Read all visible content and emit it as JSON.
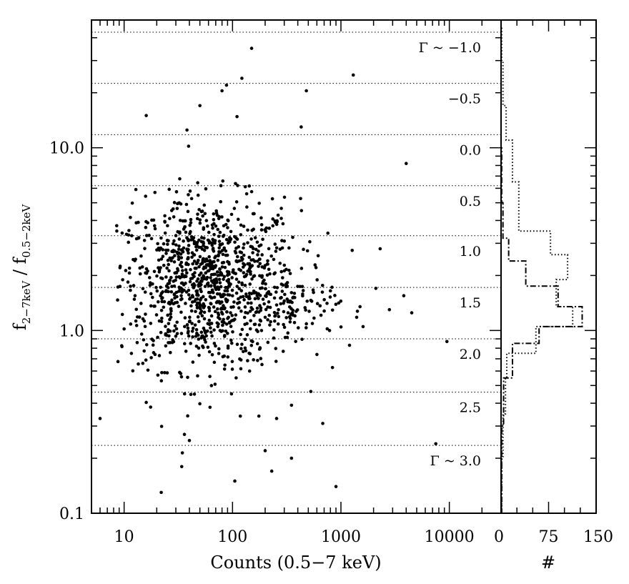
{
  "chart_data": [
    {
      "type": "scatter",
      "xlabel": "Counts (0.5−7 keV)",
      "ylabel": {
        "prefix": "f",
        "sub1": "2−7keV",
        "middle": " / f",
        "sub2": "0.5−2keV"
      },
      "x_scale": "log",
      "y_scale": "log",
      "xlim": [
        5,
        30000
      ],
      "ylim": [
        0.1,
        50
      ],
      "x_ticks": [
        {
          "value": 10,
          "label": "10"
        },
        {
          "value": 100,
          "label": "100"
        },
        {
          "value": 1000,
          "label": "1000"
        },
        {
          "value": 10000,
          "label": "10000"
        }
      ],
      "y_ticks": [
        {
          "value": 0.1,
          "label": "0.1"
        },
        {
          "value": 1.0,
          "label": "1.0"
        },
        {
          "value": 10.0,
          "label": "10.0"
        }
      ],
      "gamma_lines": [
        {
          "gamma": "-1.0",
          "ratio": 42.9,
          "label": "Γ ~ −1.0"
        },
        {
          "gamma": "-0.5",
          "ratio": 22.5,
          "label": "−0.5"
        },
        {
          "gamma": "0.0",
          "ratio": 11.8,
          "label": "0.0"
        },
        {
          "gamma": "0.5",
          "ratio": 6.2,
          "label": "0.5"
        },
        {
          "gamma": "1.0",
          "ratio": 3.3,
          "label": "1.0"
        },
        {
          "gamma": "1.5",
          "ratio": 1.72,
          "label": "1.5"
        },
        {
          "gamma": "2.0",
          "ratio": 0.9,
          "label": "2.0"
        },
        {
          "gamma": "2.5",
          "ratio": 0.46,
          "label": "2.5"
        },
        {
          "gamma": "3.0",
          "ratio": 0.235,
          "label": "Γ ~ 3.0"
        }
      ],
      "points": [
        [
          6,
          0.33
        ],
        [
          10,
          1.02
        ],
        [
          16,
          15
        ],
        [
          22,
          0.13
        ],
        [
          34,
          0.18
        ],
        [
          36,
          0.27
        ],
        [
          38,
          12.5
        ],
        [
          40,
          0.25
        ],
        [
          50,
          17
        ],
        [
          62,
          0.38
        ],
        [
          80,
          20.5
        ],
        [
          88,
          22
        ],
        [
          105,
          0.15
        ],
        [
          110,
          14.8
        ],
        [
          118,
          0.34
        ],
        [
          122,
          24
        ],
        [
          150,
          35
        ],
        [
          175,
          0.34
        ],
        [
          200,
          0.22
        ],
        [
          230,
          0.17
        ],
        [
          255,
          0.33
        ],
        [
          350,
          0.39
        ],
        [
          350,
          0.2
        ],
        [
          430,
          13
        ],
        [
          480,
          20.5
        ],
        [
          680,
          0.31
        ],
        [
          900,
          0.14
        ],
        [
          1300,
          25
        ],
        [
          2300,
          2.8
        ],
        [
          4000,
          8.2
        ],
        [
          4500,
          1.25
        ],
        [
          7500,
          0.24
        ],
        [
          9500,
          0.87
        ],
        [
          1500,
          1.35
        ],
        [
          2100,
          1.7
        ],
        [
          2800,
          1.3
        ],
        [
          3800,
          1.55
        ],
        [
          1200,
          0.83
        ],
        [
          1600,
          1.05
        ]
      ],
      "density_cloud": {
        "x_center": 60,
        "x_log_sigma": 0.42,
        "y_center": 1.8,
        "y_log_sigma": 0.23,
        "n_points": 1150
      },
      "tail_cloud": {
        "x_center": 400,
        "x_log_sigma": 0.2,
        "y_center": 1.35,
        "y_log_sigma": 0.08,
        "n_points": 70
      }
    },
    {
      "type": "histogram",
      "orientation": "horizontal",
      "xlabel": "#",
      "xlim": [
        0,
        150
      ],
      "x_ticks": [
        {
          "value": 0,
          "label": "0"
        },
        {
          "value": 75,
          "label": "75"
        },
        {
          "value": 150,
          "label": "150"
        }
      ],
      "series": [
        {
          "style": "dotted",
          "bins": [
            {
              "y_low": 0.1,
              "y_high": 0.2,
              "count": 1
            },
            {
              "y_low": 0.2,
              "y_high": 0.35,
              "count": 3
            },
            {
              "y_low": 0.35,
              "y_high": 0.55,
              "count": 7
            },
            {
              "y_low": 0.55,
              "y_high": 0.75,
              "count": 9
            },
            {
              "y_low": 0.75,
              "y_high": 1.05,
              "count": 55
            },
            {
              "y_low": 1.05,
              "y_high": 1.35,
              "count": 113
            },
            {
              "y_low": 1.35,
              "y_high": 1.9,
              "count": 87
            },
            {
              "y_low": 1.9,
              "y_high": 2.6,
              "count": 105
            },
            {
              "y_low": 2.6,
              "y_high": 3.5,
              "count": 78
            },
            {
              "y_low": 3.5,
              "y_high": 6.5,
              "count": 28
            },
            {
              "y_low": 6.5,
              "y_high": 11,
              "count": 18
            },
            {
              "y_low": 11,
              "y_high": 17,
              "count": 8
            },
            {
              "y_low": 17,
              "y_high": 30,
              "count": 3
            },
            {
              "y_low": 30,
              "y_high": 45,
              "count": 1
            }
          ]
        },
        {
          "style": "dash-dot",
          "bins": [
            {
              "y_low": 0.1,
              "y_high": 0.3,
              "count": 1
            },
            {
              "y_low": 0.3,
              "y_high": 0.55,
              "count": 4
            },
            {
              "y_low": 0.55,
              "y_high": 0.85,
              "count": 18
            },
            {
              "y_low": 0.85,
              "y_high": 1.05,
              "count": 60
            },
            {
              "y_low": 1.05,
              "y_high": 1.35,
              "count": 128
            },
            {
              "y_low": 1.35,
              "y_high": 1.75,
              "count": 90
            },
            {
              "y_low": 1.75,
              "y_high": 2.4,
              "count": 39
            },
            {
              "y_low": 2.4,
              "y_high": 3.2,
              "count": 12
            },
            {
              "y_low": 3.2,
              "y_high": 5,
              "count": 3
            },
            {
              "y_low": 5,
              "y_high": 10,
              "count": 1
            }
          ]
        }
      ]
    }
  ]
}
